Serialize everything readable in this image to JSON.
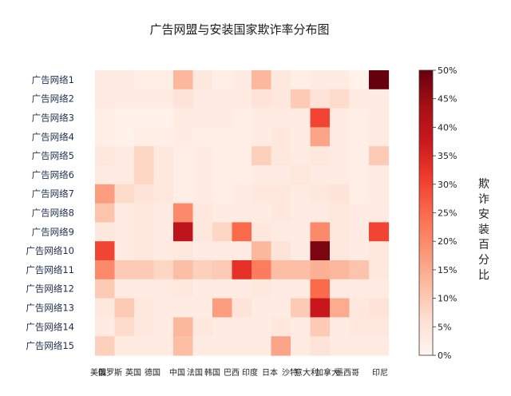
{
  "chart_data": {
    "type": "heatmap",
    "title": "广告网盟与安装国家欺诈率分布图",
    "rows": [
      "广告网络1",
      "广告网络2",
      "广告网络3",
      "广告网络4",
      "广告网络5",
      "广告网络6",
      "广告网络7",
      "广告网络8",
      "广告网络9",
      "广告网络10",
      "广告网络11",
      "广告网络12",
      "广告网络13",
      "广告网络14",
      "广告网络15"
    ],
    "columns": [
      "美国",
      "俄罗斯",
      "英国",
      "德国",
      "中国",
      "法国",
      "韩国",
      "巴西",
      "印度",
      "日本",
      "沙特",
      "意大利",
      "加拿大",
      "墨西哥",
      "印尼"
    ],
    "colorbar": {
      "label": "欺诈安装百分比",
      "ticks": [
        "0%",
        "5%",
        "10%",
        "15%",
        "20%",
        "25%",
        "30%",
        "35%",
        "40%",
        "45%",
        "50%"
      ],
      "range": [
        0,
        50
      ]
    },
    "values": [
      [
        3,
        3,
        2,
        2,
        13,
        4,
        2,
        3,
        13,
        4,
        2,
        3,
        3,
        1,
        50
      ],
      [
        3,
        3,
        3,
        3,
        5,
        3,
        3,
        3,
        5,
        4,
        10,
        5,
        7,
        3,
        3
      ],
      [
        2,
        1,
        1,
        1,
        3,
        3,
        3,
        2,
        3,
        3,
        3,
        30,
        3,
        2,
        3
      ],
      [
        2,
        1,
        2,
        2,
        3,
        2,
        2,
        2,
        3,
        4,
        3,
        16,
        3,
        2,
        3
      ],
      [
        4,
        3,
        8,
        4,
        2,
        3,
        2,
        2,
        9,
        4,
        3,
        4,
        3,
        2,
        10
      ],
      [
        3,
        3,
        8,
        4,
        2,
        3,
        2,
        2,
        3,
        3,
        4,
        3,
        3,
        2,
        3
      ],
      [
        17,
        7,
        5,
        4,
        2,
        3,
        2,
        3,
        4,
        4,
        3,
        4,
        5,
        2,
        3
      ],
      [
        11,
        3,
        4,
        3,
        20,
        4,
        3,
        3,
        3,
        4,
        3,
        3,
        4,
        3,
        3
      ],
      [
        4,
        3,
        4,
        3,
        40,
        4,
        8,
        25,
        4,
        3,
        3,
        20,
        4,
        3,
        30
      ],
      [
        30,
        3,
        4,
        3,
        4,
        3,
        3,
        3,
        13,
        5,
        3,
        48,
        4,
        3,
        4
      ],
      [
        20,
        10,
        10,
        8,
        12,
        9,
        10,
        33,
        22,
        12,
        12,
        14,
        13,
        11,
        4
      ],
      [
        10,
        3,
        3,
        3,
        4,
        3,
        3,
        3,
        4,
        3,
        3,
        25,
        3,
        3,
        3
      ],
      [
        4,
        10,
        4,
        3,
        3,
        3,
        17,
        5,
        3,
        3,
        10,
        38,
        15,
        4,
        5
      ],
      [
        3,
        7,
        4,
        3,
        13,
        4,
        3,
        3,
        3,
        4,
        3,
        10,
        3,
        4,
        4
      ],
      [
        9,
        3,
        3,
        3,
        12,
        3,
        3,
        3,
        3,
        16,
        3,
        5,
        3,
        3,
        3
      ]
    ]
  }
}
